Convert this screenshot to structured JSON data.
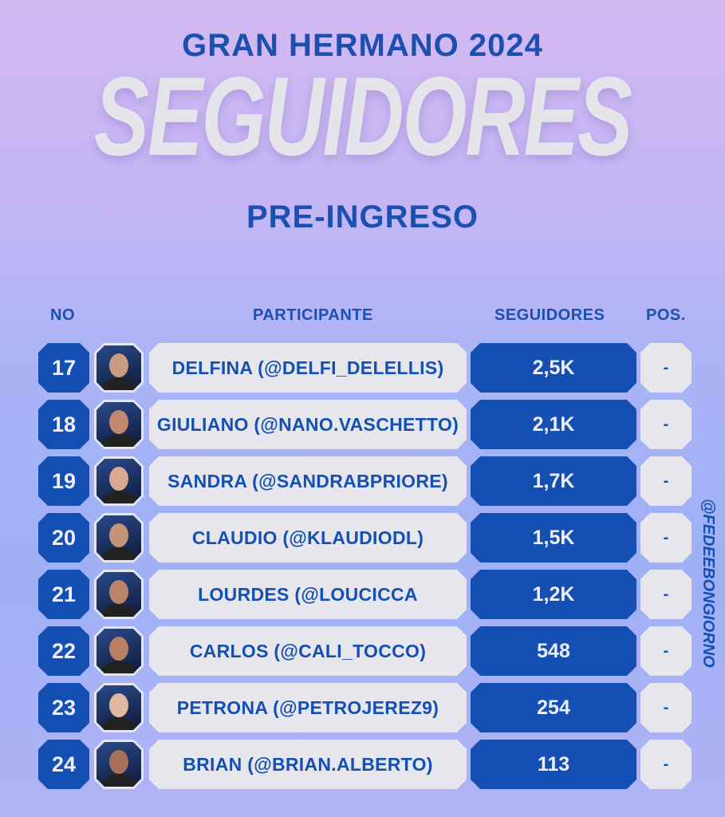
{
  "title_top": "GRAN HERMANO 2024",
  "title_main": "SEGUIDORES",
  "subtitle": "PRE-INGRESO",
  "headers": {
    "no": "NO",
    "participante": "PARTICIPANTE",
    "seguidores": "SEGUIDORES",
    "pos": "POS."
  },
  "watermark": "@FEDEEBONGIORNO",
  "colors": {
    "accent": "#1450b4",
    "box_light": "#e6e6ec"
  },
  "rows": [
    {
      "no": "17",
      "name": "DELFINA (@DELFI_DELELLIS)",
      "followers": "2,5K",
      "pos": "-"
    },
    {
      "no": "18",
      "name": "GIULIANO (@NANO.VASCHETTO)",
      "followers": "2,1K",
      "pos": "-"
    },
    {
      "no": "19",
      "name": "SANDRA (@SANDRABPRIORE)",
      "followers": "1,7K",
      "pos": "-"
    },
    {
      "no": "20",
      "name": "CLAUDIO (@KLAUDIODL)",
      "followers": "1,5K",
      "pos": "-"
    },
    {
      "no": "21",
      "name": "LOURDES (@LOUCICCA",
      "followers": "1,2K",
      "pos": "-"
    },
    {
      "no": "22",
      "name": "CARLOS (@CALI_TOCCO)",
      "followers": "548",
      "pos": "-"
    },
    {
      "no": "23",
      "name": "PETRONA (@PETROJEREZ9)",
      "followers": "254",
      "pos": "-"
    },
    {
      "no": "24",
      "name": "BRIAN (@BRIAN.ALBERTO)",
      "followers": "113",
      "pos": "-"
    }
  ]
}
